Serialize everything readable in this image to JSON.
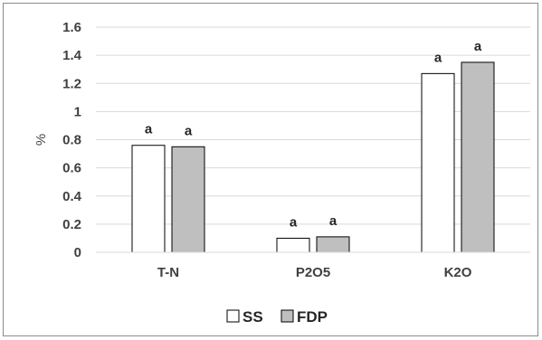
{
  "chart_data": {
    "type": "bar",
    "title": "",
    "xlabel": "",
    "ylabel": "%",
    "ylim": [
      0,
      1.6
    ],
    "yticks": [
      0,
      0.2,
      0.4,
      0.6,
      0.8,
      1,
      1.2,
      1.4,
      1.6
    ],
    "ytick_labels": [
      "0",
      "0.2",
      "0.4",
      "0.6",
      "0.8",
      "1",
      "1.2",
      "1.4",
      "1.6"
    ],
    "grid": true,
    "legend_position": "bottom",
    "categories": [
      "T-N",
      "P2O5",
      "K2O"
    ],
    "series": [
      {
        "name": "SS",
        "values": [
          0.76,
          0.1,
          1.27
        ],
        "labels": [
          "a",
          "a",
          "a"
        ],
        "color": "#ffffff",
        "stroke": "#000000"
      },
      {
        "name": "FDP",
        "values": [
          0.75,
          0.11,
          1.35
        ],
        "labels": [
          "a",
          "a",
          "a"
        ],
        "color": "#bfbfbf",
        "stroke": "#000000"
      }
    ]
  }
}
